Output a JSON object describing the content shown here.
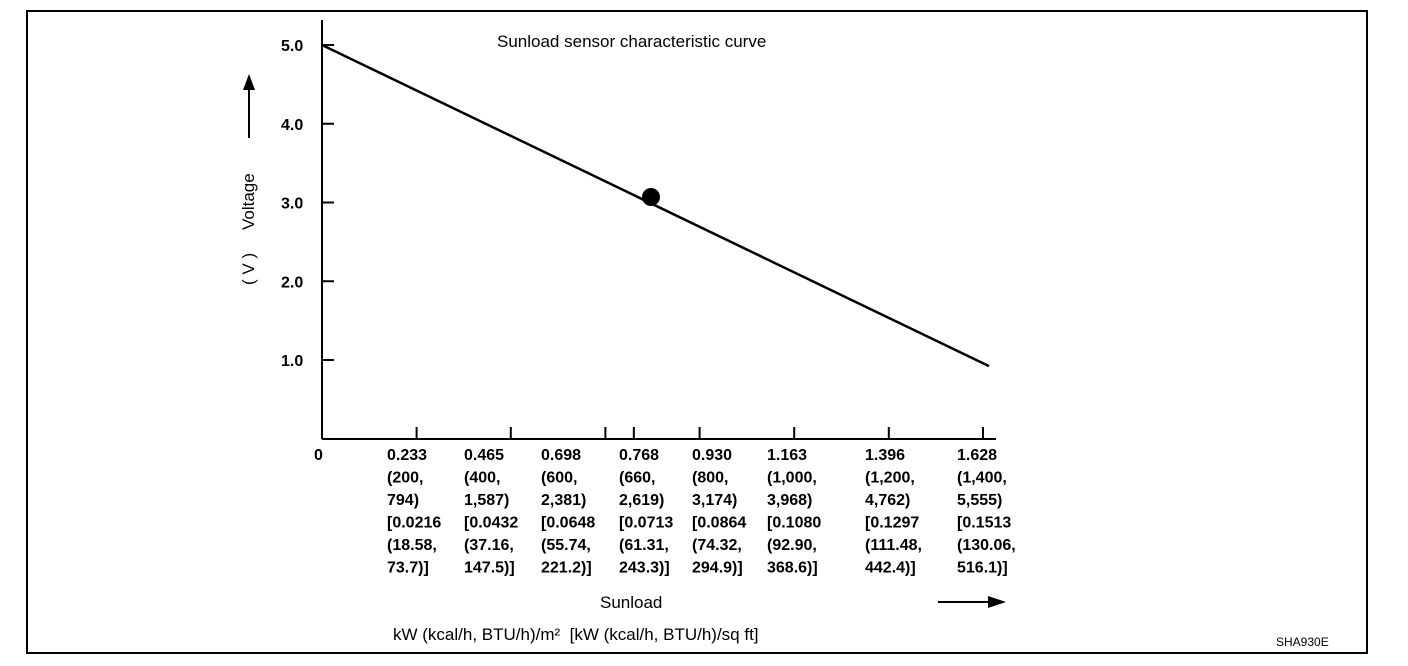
{
  "chart_data": {
    "type": "line",
    "title": "Sunload sensor characteristic curve",
    "xlabel": "Sunload",
    "xunits": "kW (kcal/h, BTU/h)/m²  [kW (kcal/h, BTU/h)/sq ft]",
    "ylabel": "Voltage",
    "yunit": "( V )",
    "ylim": [
      0,
      5.0
    ],
    "xlim": [
      0,
      1.628
    ],
    "y_ticks": [
      "5.0",
      "4.0",
      "3.0",
      "2.0",
      "1.0"
    ],
    "y_tick_values": [
      5.0,
      4.0,
      3.0,
      2.0,
      1.0
    ],
    "x_ticks": [
      {
        "value": 0,
        "lines": [
          "0"
        ]
      },
      {
        "value": 0.233,
        "lines": [
          "0.233",
          "(200,",
          "794)",
          "[0.0216",
          "(18.58,",
          "73.7)]"
        ]
      },
      {
        "value": 0.465,
        "lines": [
          "0.465",
          "(400,",
          "1,587)",
          "[0.0432",
          "(37.16,",
          "147.5)]"
        ]
      },
      {
        "value": 0.698,
        "lines": [
          "0.698",
          "(600,",
          "2,381)",
          "[0.0648",
          "(55.74,",
          "221.2)]"
        ]
      },
      {
        "value": 0.768,
        "lines": [
          "0.768",
          "(660,",
          "2,619)",
          "[0.0713",
          "(61.31,",
          "243.3)]"
        ]
      },
      {
        "value": 0.93,
        "lines": [
          "0.930",
          "(800,",
          "3,174)",
          "[0.0864",
          "(74.32,",
          "294.9)]"
        ]
      },
      {
        "value": 1.163,
        "lines": [
          "1.163",
          "(1,000,",
          "3,968)",
          "[0.1080",
          "(92.90,",
          "368.6)]"
        ]
      },
      {
        "value": 1.396,
        "lines": [
          "1.396",
          "(1,200,",
          "4,762)",
          "[0.1297",
          "(111.48,",
          "442.4)]"
        ]
      },
      {
        "value": 1.628,
        "lines": [
          "1.628",
          "(1,400,",
          "5,555)",
          "[0.1513",
          "(130.06,",
          "516.1)]"
        ]
      }
    ],
    "series": [
      {
        "name": "Voltage",
        "x": [
          0,
          1.628
        ],
        "y": [
          5.0,
          1.1
        ]
      }
    ],
    "marker_point": {
      "x": 0.768,
      "y": 3.07
    },
    "figure_code": "SHA930E"
  }
}
